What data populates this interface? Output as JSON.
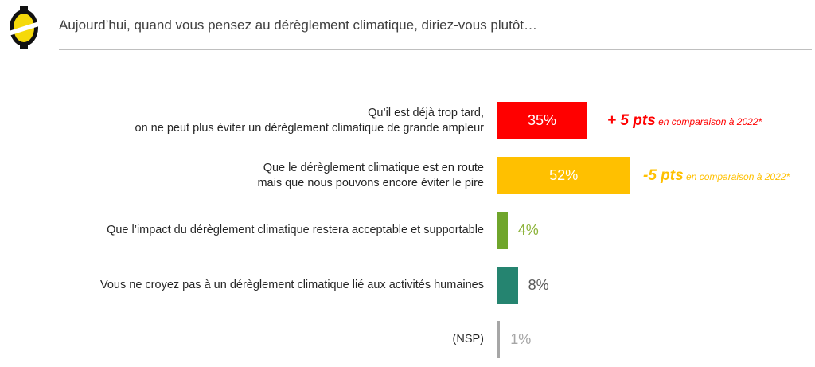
{
  "header": {
    "title": "Aujourd’hui, quand vous pensez au dérèglement climatique, diriez-vous plutôt…",
    "logo": "logo-icon"
  },
  "chart_data": {
    "type": "bar",
    "orientation": "horizontal",
    "title": "Aujourd’hui, quand vous pensez au dérèglement climatique, diriez-vous plutôt…",
    "categories": [
      [
        "Qu’il est déjà trop tard,",
        "on ne peut plus éviter un dérèglement climatique de grande ampleur"
      ],
      [
        "Que le dérèglement  climatique est en route",
        "mais que nous pouvons encore éviter le pire"
      ],
      [
        "Que l’impact du dérèglement climatique restera acceptable et supportable"
      ],
      [
        "Vous ne croyez pas à un dérèglement climatique lié aux activités humaines"
      ],
      [
        "(NSP)"
      ]
    ],
    "values": [
      35,
      52,
      4,
      8,
      1
    ],
    "value_labels": [
      "35%",
      "52%",
      "4%",
      "8%",
      "1%"
    ],
    "colors": [
      "#FF0000",
      "#FFC000",
      "#6FA52B",
      "#258470",
      "#A6A6A6"
    ],
    "label_colors": [
      "#FFFFFF",
      "#FFFFFF",
      "#8DB33A",
      "#595959",
      "#A6A6A6"
    ],
    "comparisons": [
      {
        "delta": "+ 5 pts",
        "note": "en comparaison à 2022*",
        "color": "#FF0000"
      },
      {
        "delta": "-5 pts",
        "note": "en comparaison à 2022*",
        "color": "#FFC000"
      }
    ],
    "xlim": [
      0,
      100
    ]
  }
}
